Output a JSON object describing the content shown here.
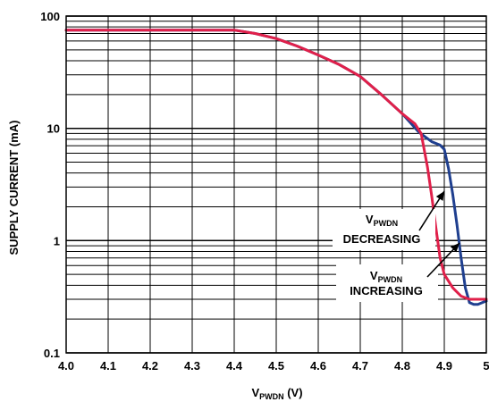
{
  "chart_data": {
    "type": "line",
    "xlabel": {
      "main": "V",
      "sub": "PWDN",
      "unit": " (V)"
    },
    "ylabel": "SUPPLY CURRENT (mA)",
    "xlim": [
      4.0,
      5.0
    ],
    "ylim": [
      0.1,
      100
    ],
    "yscale": "log",
    "grid": true,
    "x_ticks": [
      "4.0",
      "4.1",
      "4.2",
      "4.3",
      "4.4",
      "4.5",
      "4.6",
      "4.7",
      "4.8",
      "4.9",
      "5"
    ],
    "x_tick_values": [
      4.0,
      4.1,
      4.2,
      4.3,
      4.4,
      4.5,
      4.6,
      4.7,
      4.8,
      4.9,
      5.0
    ],
    "y_ticks": [
      "0.1",
      "1",
      "10",
      "100"
    ],
    "y_tick_values": [
      0.1,
      1,
      10,
      100
    ],
    "series": [
      {
        "color": "#1f3f8f",
        "x": [
          4.0,
          4.1,
          4.2,
          4.3,
          4.4,
          4.45,
          4.5,
          4.55,
          4.6,
          4.65,
          4.7,
          4.75,
          4.8,
          4.84,
          4.87,
          4.89,
          4.9,
          4.91,
          4.92,
          4.93,
          4.94,
          4.95,
          4.96,
          4.97,
          4.98,
          5.0
        ],
        "y": [
          75,
          75,
          75,
          75,
          75,
          70,
          63,
          54,
          45,
          37,
          29,
          20,
          13.5,
          9.2,
          7.6,
          7.1,
          6.5,
          4.4,
          2.6,
          1.4,
          0.7,
          0.38,
          0.28,
          0.27,
          0.27,
          0.29
        ]
      },
      {
        "color": "#e0204a",
        "x": [
          4.0,
          4.1,
          4.2,
          4.3,
          4.4,
          4.45,
          4.5,
          4.55,
          4.6,
          4.65,
          4.7,
          4.75,
          4.8,
          4.83,
          4.845,
          4.86,
          4.87,
          4.88,
          4.89,
          4.9,
          4.92,
          4.94,
          4.96,
          4.98,
          5.0
        ],
        "y": [
          75,
          75,
          75,
          75,
          75,
          70,
          63,
          54,
          45,
          37,
          29,
          20,
          13.5,
          11.0,
          9.0,
          4.5,
          2.5,
          1.3,
          0.7,
          0.5,
          0.38,
          0.32,
          0.3,
          0.3,
          0.3
        ]
      }
    ],
    "annotations": [
      {
        "main": "V",
        "sub": "PWDN",
        "line2": "DECREASING"
      },
      {
        "main": "V",
        "sub": "PWDN",
        "line2": "INCREASING"
      }
    ]
  }
}
